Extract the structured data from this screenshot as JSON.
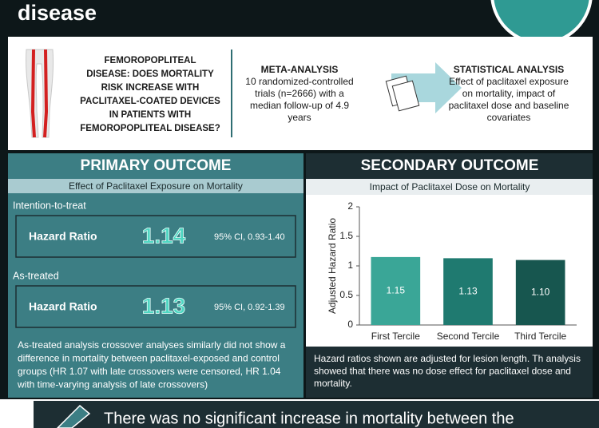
{
  "header": {
    "title": "disease"
  },
  "question": {
    "lines": [
      "FEMOROPOPLITEAL",
      "DISEASE: DOES MORTALITY",
      "RISK INCREASE WITH",
      "PACLITAXEL-COATED DEVICES",
      "IN PATIENTS WITH",
      "FEMOROPOPLITEAL DISEASE?"
    ]
  },
  "meta": {
    "title": "META-ANALYSIS",
    "lines": [
      "10 randomized-controlled",
      "trials (n=2666) with a",
      "median follow-up of 4.9",
      "years"
    ]
  },
  "stats": {
    "title": "STATISTICAL ANALYSIS",
    "lines": [
      "Effect of paclitaxel exposure",
      "on mortality, impact of",
      "paclitaxel dose and baseline",
      "covariates"
    ]
  },
  "primary": {
    "title": "PRIMARY OUTCOME",
    "subtitle": "Effect of Paclitaxel Exposure on Mortality",
    "results": [
      {
        "group": "Intention-to-treat",
        "label": "Hazard Ratio",
        "value": "1.14",
        "ci": "95% CI, 0.93-1.40"
      },
      {
        "group": "As-treated",
        "label": "Hazard Ratio",
        "value": "1.13",
        "ci": "95% CI, 0.92-1.39"
      }
    ],
    "note": [
      "As-treated analysis crossover analyses similarly did not show a",
      "difference in mortality between paclitaxel-exposed and control",
      "groups (HR 1.07 with late crossovers were censored, HR 1.04",
      "with time-varying analysis of late crossovers)"
    ]
  },
  "secondary": {
    "title": "SECONDARY OUTCOME",
    "subtitle": "Impact of Paclitaxel Dose on Mortality",
    "chart": {
      "type": "bar",
      "y_label": "Adjusted Hazard Ratio",
      "categories": [
        "First Tercile",
        "Second Tercile",
        "Third Tercile"
      ],
      "values": [
        1.15,
        1.13,
        1.1
      ],
      "value_labels": [
        "1.15",
        "1.13",
        "1.10"
      ],
      "colors": [
        "#3aa697",
        "#1f7a70",
        "#17564f"
      ],
      "ylim": [
        0,
        2
      ],
      "yticks": [
        0,
        0.5,
        1,
        1.5,
        2
      ]
    },
    "note": [
      "Hazard ratios shown are adjusted for lesion length. Th analysis",
      "showed that there was no dose effect for paclitaxel dose and",
      "mortality."
    ]
  },
  "conclusion": {
    "text": "There was no significant increase in mortality between the"
  }
}
